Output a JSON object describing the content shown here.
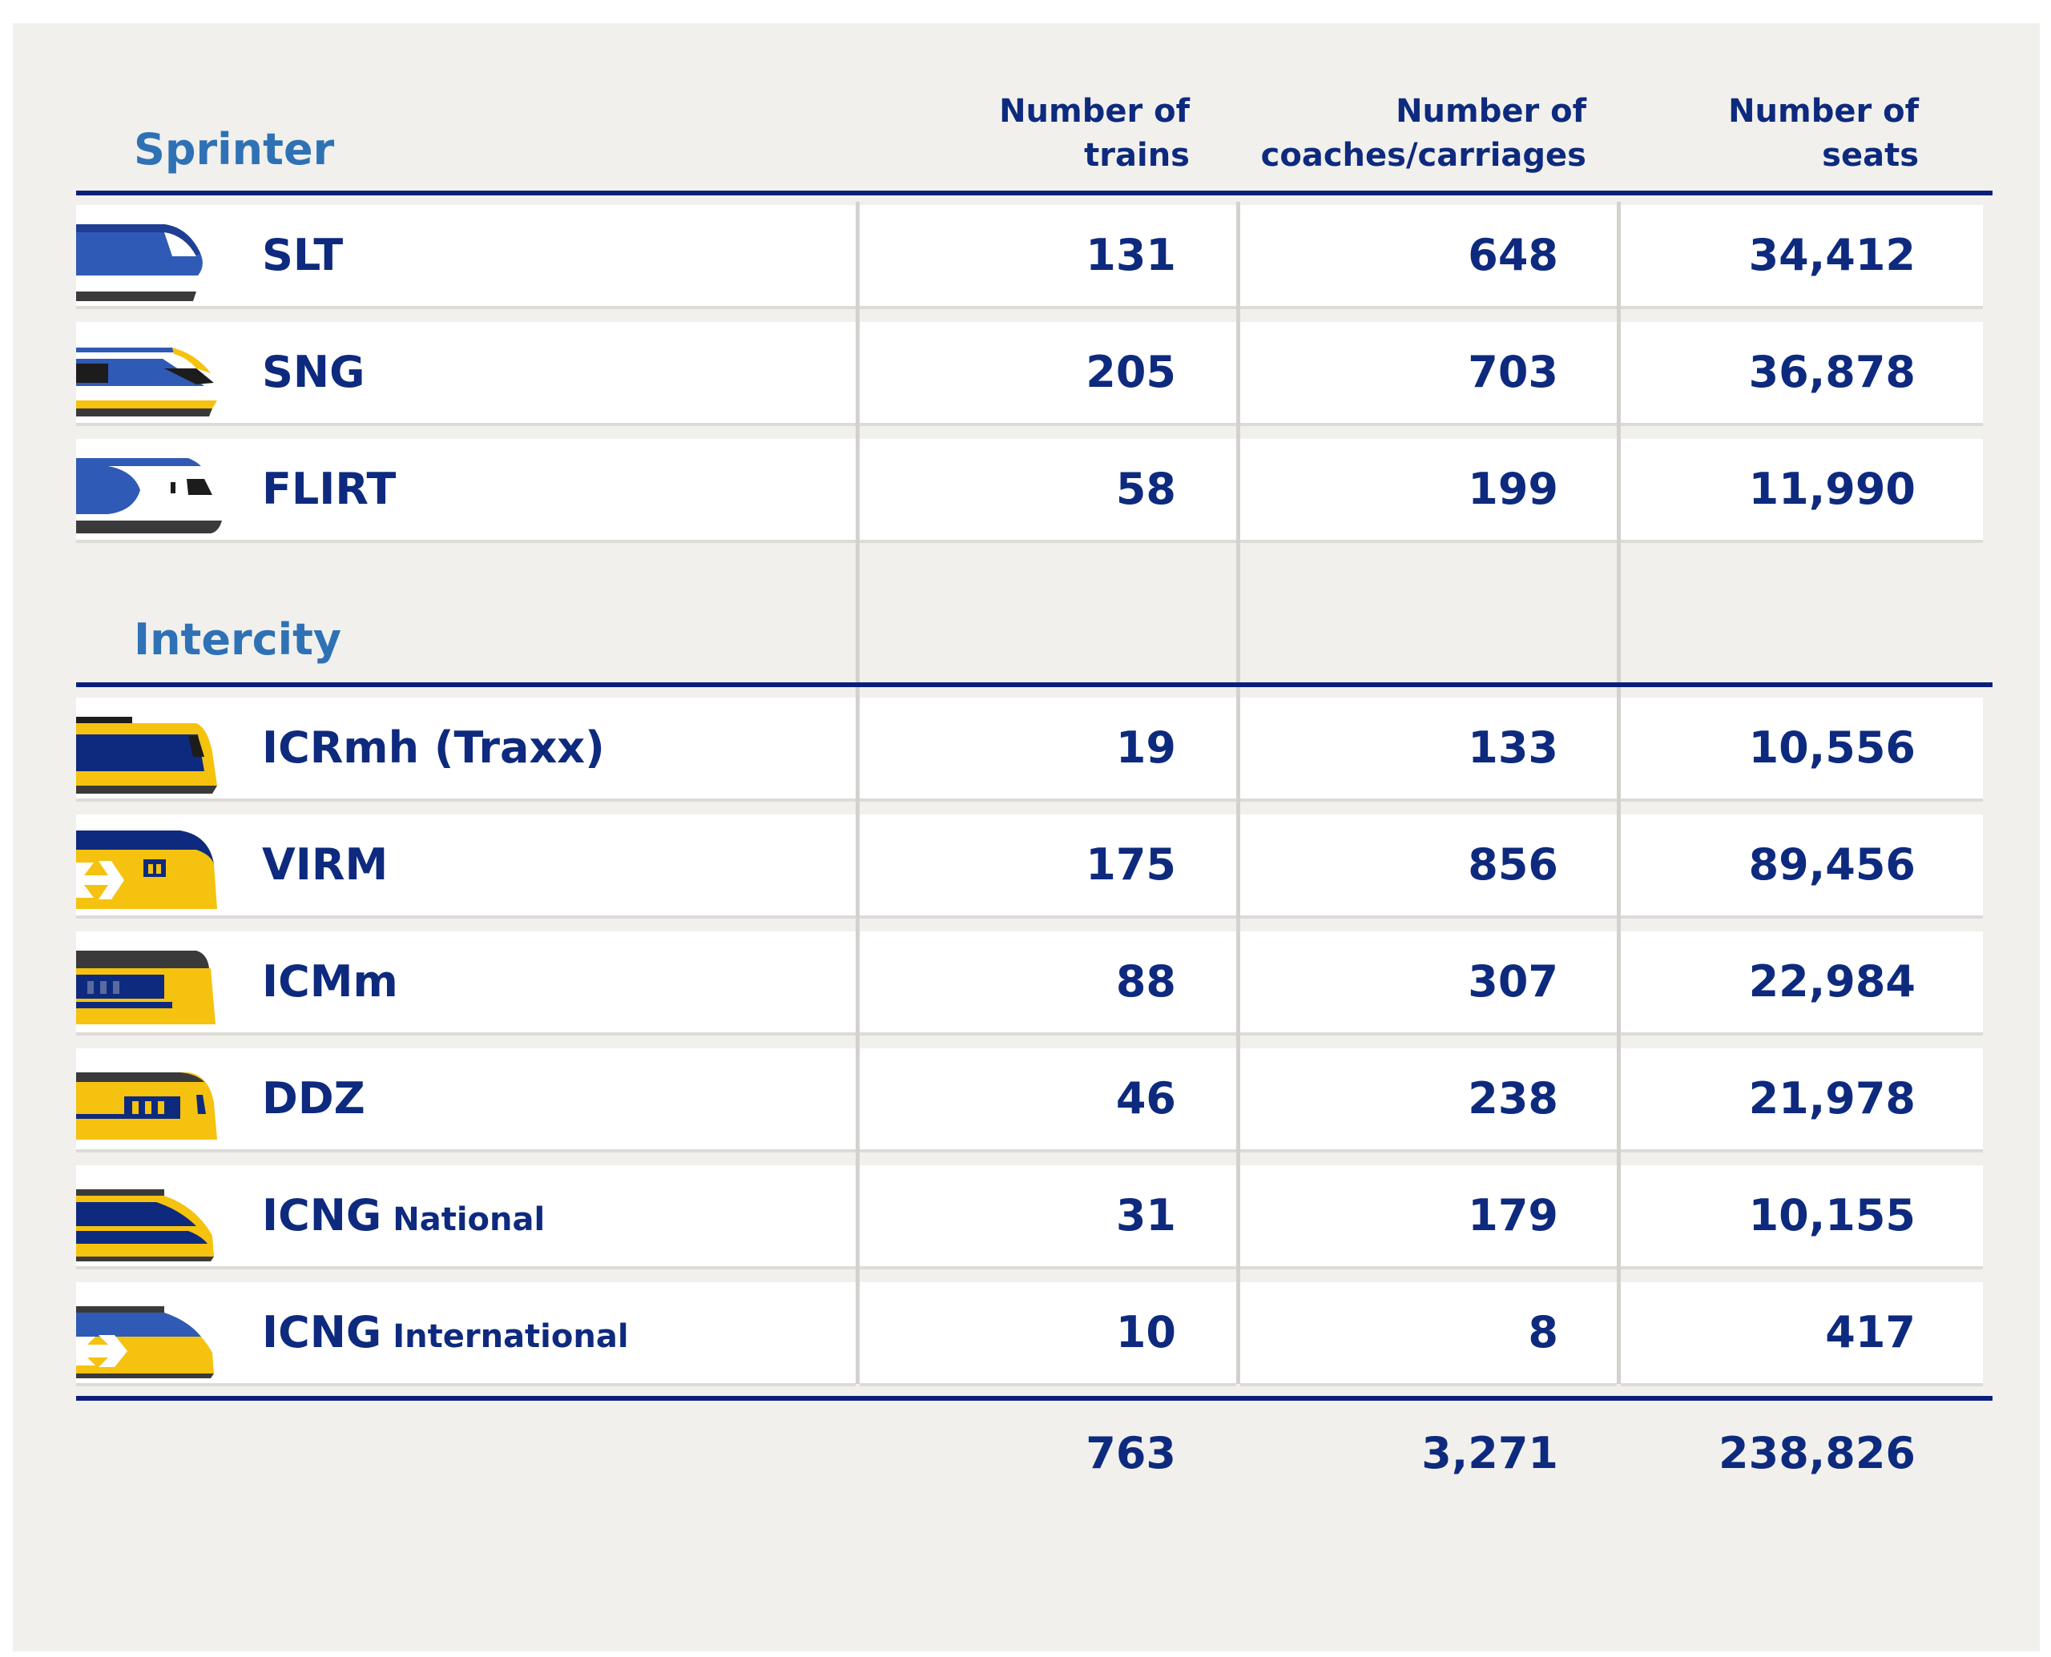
{
  "colors": {
    "background": "#f1f0ec",
    "section_title": "#2f71b5",
    "text": "#0e2a7e",
    "rule": "#0a1f7a",
    "sprinter_blue": "#2f5ab5",
    "intercity_yellow": "#f5c20f"
  },
  "columns": {
    "trains": [
      "Number of",
      "trains"
    ],
    "coaches": [
      "Number of",
      "coaches/carriages"
    ],
    "seats": [
      "Number of",
      "seats"
    ]
  },
  "sections": [
    {
      "title": "Sprinter",
      "rows": [
        {
          "name": "SLT",
          "sub": "",
          "icon": "slt-train-icon",
          "trains": "131",
          "coaches": "648",
          "seats": "34,412"
        },
        {
          "name": "SNG",
          "sub": "",
          "icon": "sng-train-icon",
          "trains": "205",
          "coaches": "703",
          "seats": "36,878"
        },
        {
          "name": "FLIRT",
          "sub": "",
          "icon": "flirt-train-icon",
          "trains": "58",
          "coaches": "199",
          "seats": "11,990"
        }
      ]
    },
    {
      "title": "Intercity",
      "rows": [
        {
          "name": "ICRmh (Traxx)",
          "sub": "",
          "icon": "icrmh-train-icon",
          "trains": "19",
          "coaches": "133",
          "seats": "10,556"
        },
        {
          "name": "VIRM",
          "sub": "",
          "icon": "virm-train-icon",
          "trains": "175",
          "coaches": "856",
          "seats": "89,456"
        },
        {
          "name": "ICMm",
          "sub": "",
          "icon": "icmm-train-icon",
          "trains": "88",
          "coaches": "307",
          "seats": "22,984"
        },
        {
          "name": "DDZ",
          "sub": "",
          "icon": "ddz-train-icon",
          "trains": "46",
          "coaches": "238",
          "seats": "21,978"
        },
        {
          "name": "ICNG",
          "sub": "National",
          "icon": "icng-national-train-icon",
          "trains": "31",
          "coaches": "179",
          "seats": "10,155"
        },
        {
          "name": "ICNG",
          "sub": "International",
          "icon": "icng-international-train-icon",
          "trains": "10",
          "coaches": "8",
          "seats": "417"
        }
      ]
    }
  ],
  "totals": {
    "trains": "763",
    "coaches": "3,271",
    "seats": "238,826"
  }
}
